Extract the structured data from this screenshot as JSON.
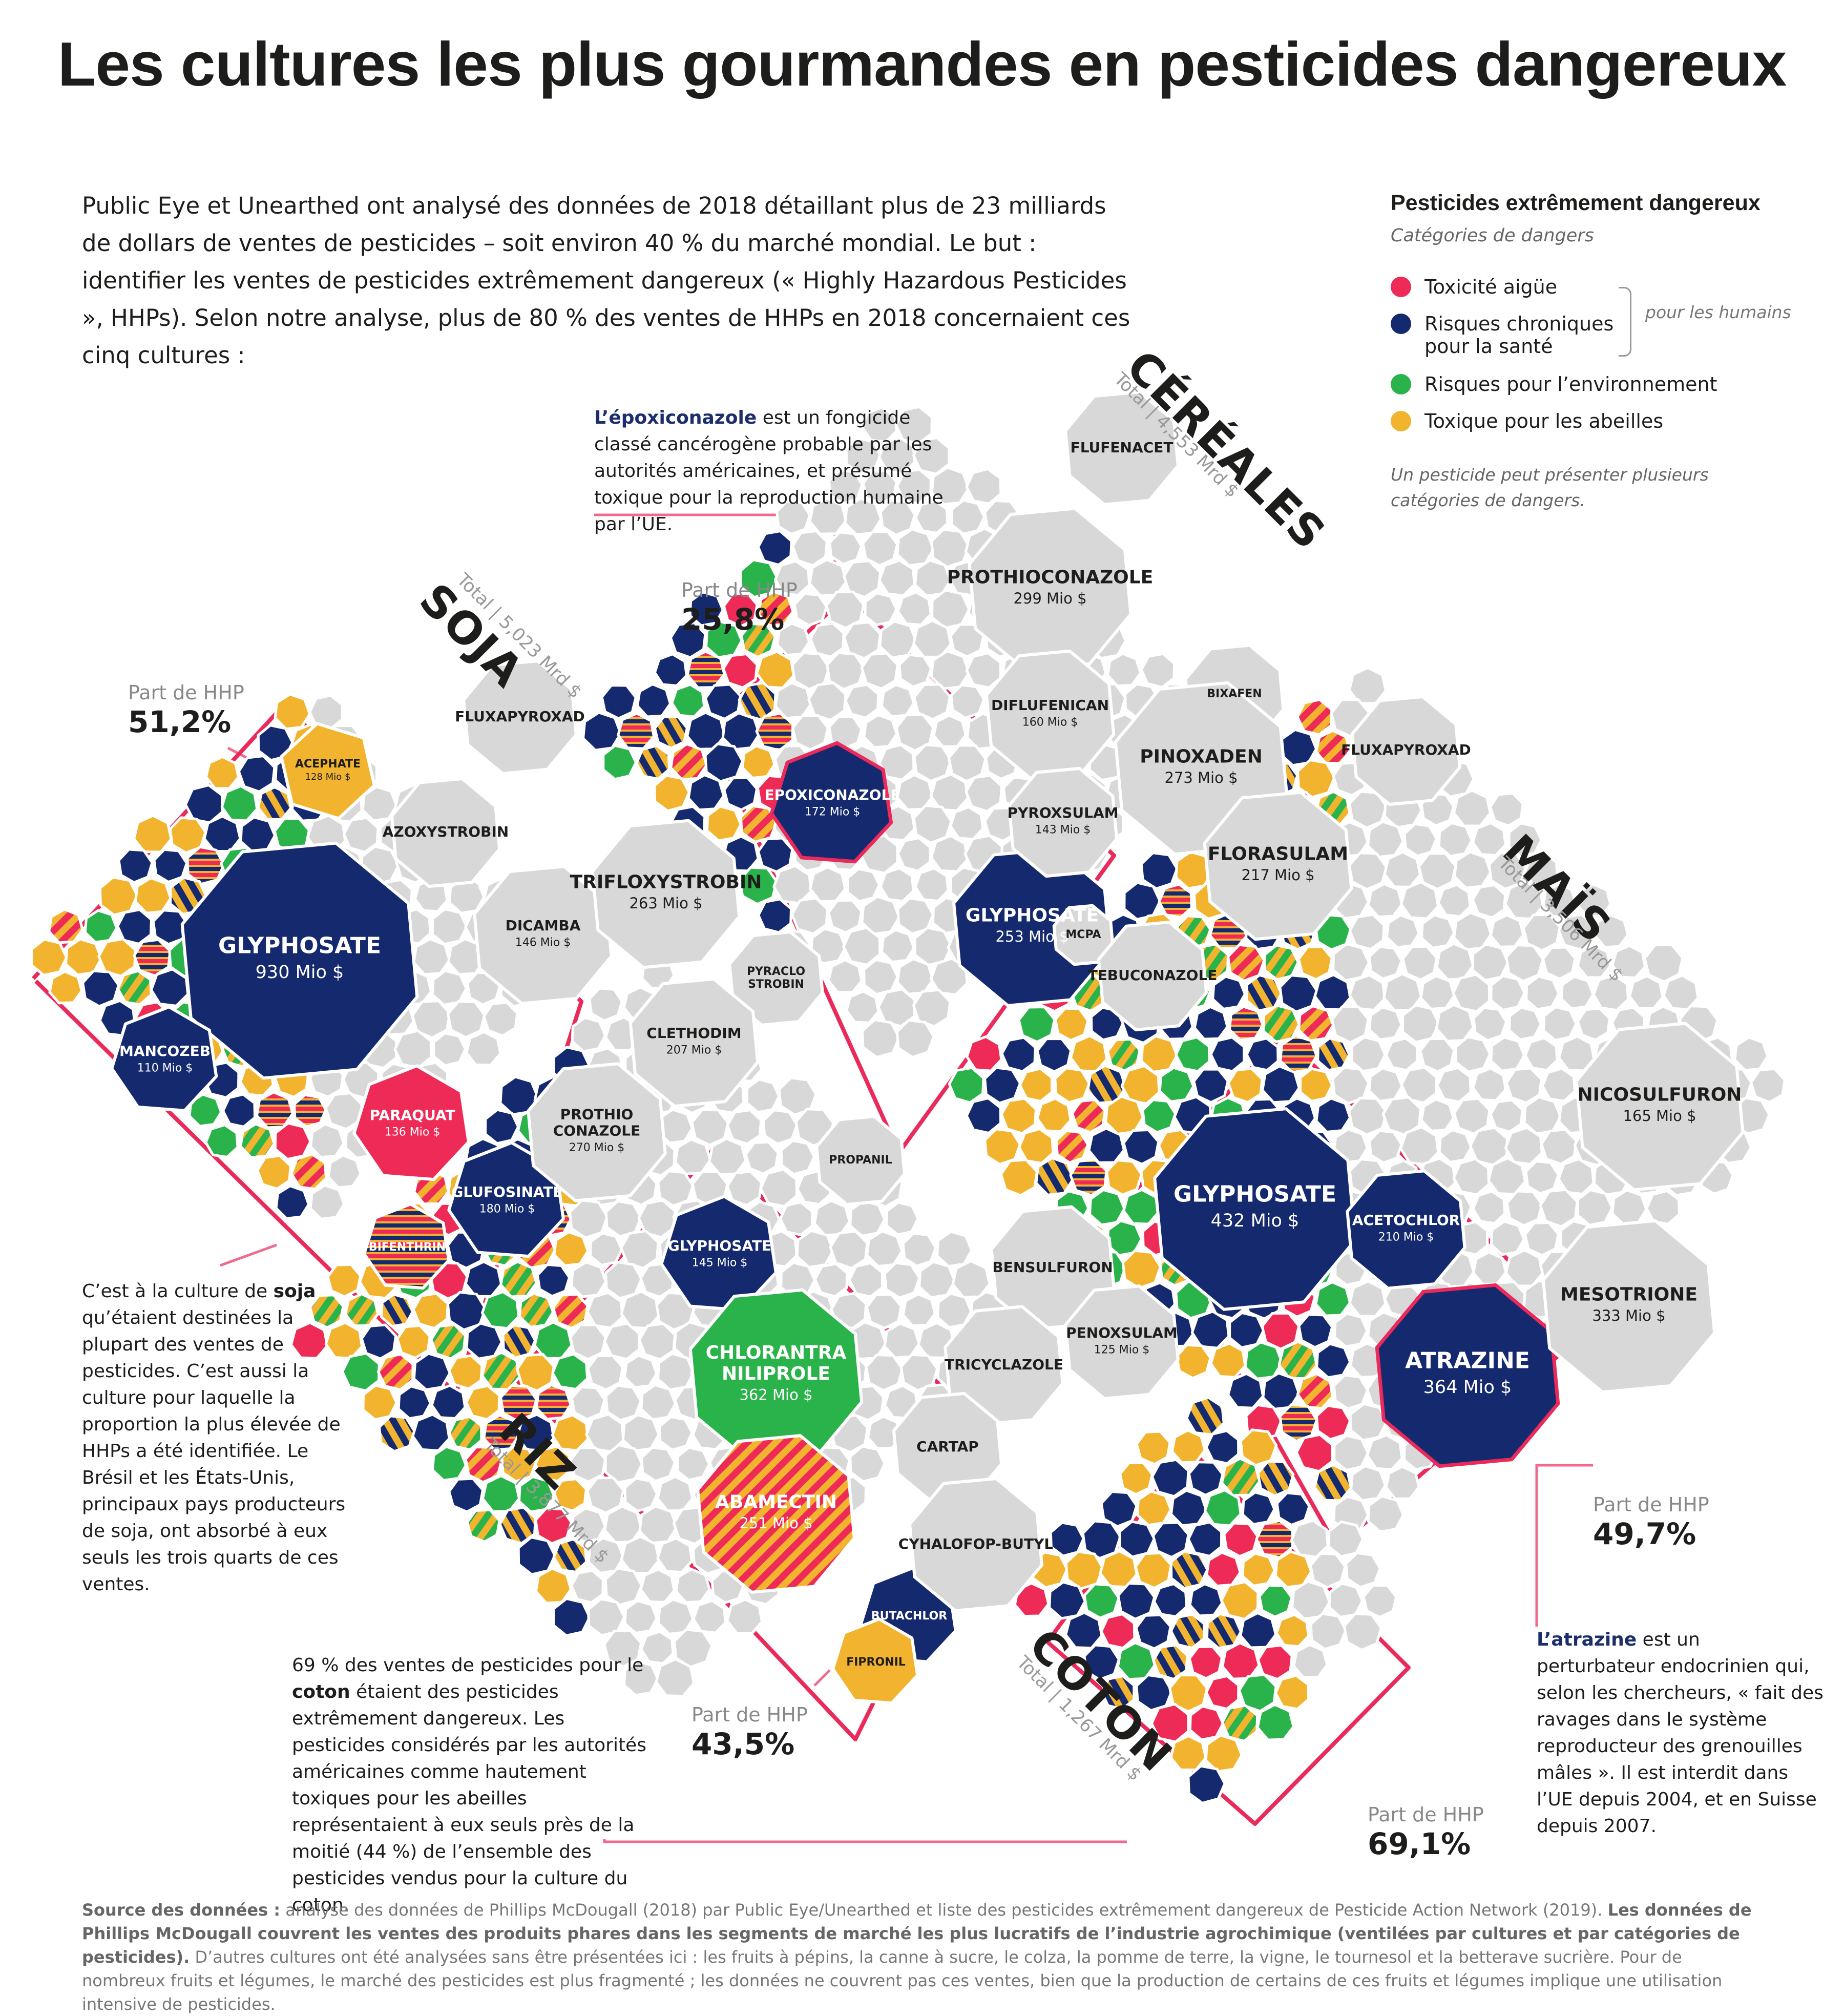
{
  "title": "Les cultures les plus gourmandes en pesticides dangereux",
  "intro": "Public Eye et Unearthed ont analysé des données de 2018 détaillant plus de 23 milliards de dollars de ventes de pesticides – soit environ 40 % du marché mondial. Le but : identifier les ventes de pesticides extrêmement dangereux (« Highly Hazardous Pesticides », HHPs).  Selon notre analyse, plus de 80 % des ventes de HHPs en 2018 concernaient ces cinq cultures :",
  "legend": {
    "title": "Pesticides extrêmement dangereux",
    "subtitle": "Catégories de dangers",
    "humans_label": "pour les humains",
    "items": [
      {
        "label": "Toxicité aigüe",
        "color": "#ee2b57"
      },
      {
        "label": "Risques chroniques",
        "label2": "pour la santé",
        "color": "#15296e"
      },
      {
        "label": "Risques pour l’environnement",
        "color": "#2ab34a"
      },
      {
        "label": "Toxique pour les abeilles",
        "color": "#f2b42e"
      }
    ],
    "note": "Un pesticide peut présenter plusieurs catégories de dangers."
  },
  "share_label": "Part de HHP",
  "colors": {
    "grey": "#d8d8d8",
    "frame": "#ea2a5a",
    "leader": "#f06a8c"
  },
  "chart_data": [
    {
      "type": "treemap",
      "crop": "SOJA",
      "total": "Total | 5,023 Mrd $",
      "hhp_share_pct": 51.2,
      "hhp_share": "51,2%",
      "labels": [
        {
          "name": "GLYPHOSATE",
          "value": "930 Mio $",
          "cat": "chronic"
        },
        {
          "name": "ACEPHATE",
          "value": "128 Mio $",
          "cat": "bees"
        },
        {
          "name": "MANCOZEB",
          "value": "110 Mio $",
          "cat": "chronic"
        },
        {
          "name": "PARAQUAT",
          "value": "136 Mio $",
          "cat": "acute"
        },
        {
          "name": "GLUFOSINATE",
          "value": "180 Mio $",
          "cat": "chronic"
        },
        {
          "name": "BIFENTHRIN",
          "value": "",
          "cat": "chronic"
        },
        {
          "name": "FLUXAPYROXAD",
          "value": "",
          "cat": "grey"
        },
        {
          "name": "AZOXYSTROBIN",
          "value": "",
          "cat": "grey"
        },
        {
          "name": "DICAMBA",
          "value": "146 Mio $",
          "cat": "grey"
        },
        {
          "name": "TRIFLOXYSTROBIN",
          "value": "263 Mio $",
          "cat": "grey"
        },
        {
          "name": "PYRACLO STROBIN",
          "value": "",
          "cat": "grey"
        },
        {
          "name": "CLETHODIM",
          "value": "207 Mio $",
          "cat": "grey"
        },
        {
          "name": "PROTHIO CONAZOLE",
          "value": "270 Mio $",
          "cat": "grey"
        }
      ]
    },
    {
      "type": "treemap",
      "crop": "CÉRÉALES",
      "total": "Total | 4,553 Mrd $",
      "hhp_share_pct": 25.8,
      "hhp_share": "25,8%",
      "labels": [
        {
          "name": "EPOXICONAZOLE",
          "value": "172 Mio $",
          "cat": "chronic"
        },
        {
          "name": "GLYPHOSATE",
          "value": "253 Mio $",
          "cat": "chronic"
        },
        {
          "name": "FLUFENACET",
          "value": "",
          "cat": "grey"
        },
        {
          "name": "PROTHIOCONAZOLE",
          "value": "299 Mio $",
          "cat": "grey"
        },
        {
          "name": "DIFLUFENICAN",
          "value": "160 Mio $",
          "cat": "grey"
        },
        {
          "name": "BIXAFEN",
          "value": "",
          "cat": "grey"
        },
        {
          "name": "PINOXADEN",
          "value": "273 Mio $",
          "cat": "grey"
        },
        {
          "name": "FLUXAPYROXAD",
          "value": "",
          "cat": "grey"
        },
        {
          "name": "PYROXSULAM",
          "value": "143 Mio $",
          "cat": "grey"
        },
        {
          "name": "FLORASULAM",
          "value": "217 Mio $",
          "cat": "grey"
        },
        {
          "name": "MCPA",
          "value": "",
          "cat": "grey"
        },
        {
          "name": "TEBUCONAZOLE",
          "value": "",
          "cat": "grey"
        }
      ]
    },
    {
      "type": "treemap",
      "crop": "MAÏS",
      "total": "Total | 3,506 Mrd $",
      "hhp_share_pct": 49.7,
      "hhp_share": "49,7%",
      "labels": [
        {
          "name": "GLYPHOSATE",
          "value": "432 Mio $",
          "cat": "chronic"
        },
        {
          "name": "ACETOCHLOR",
          "value": "210 Mio $",
          "cat": "chronic"
        },
        {
          "name": "ATRAZINE",
          "value": "364 Mio $",
          "cat": "chronic"
        },
        {
          "name": "NICOSULFURON",
          "value": "165 Mio $",
          "cat": "grey"
        },
        {
          "name": "MESOTRIONE",
          "value": "333 Mio $",
          "cat": "grey"
        }
      ]
    },
    {
      "type": "treemap",
      "crop": "RIZ",
      "total": "Total | 3,877 Mrd $",
      "hhp_share_pct": 43.5,
      "hhp_share": "43,5%",
      "labels": [
        {
          "name": "GLYPHOSATE",
          "value": "145 Mio $",
          "cat": "chronic"
        },
        {
          "name": "CHLORANTRA NILIPROLE",
          "value": "362 Mio $",
          "cat": "environment"
        },
        {
          "name": "ABAMECTIN",
          "value": "251 Mio $",
          "cat": "acute"
        },
        {
          "name": "BUTACHLOR",
          "value": "",
          "cat": "chronic"
        },
        {
          "name": "FIPRONIL",
          "value": "",
          "cat": "bees"
        },
        {
          "name": "PROPANIL",
          "value": "",
          "cat": "grey"
        },
        {
          "name": "BENSULFURON",
          "value": "",
          "cat": "grey"
        },
        {
          "name": "PENOXSULAM",
          "value": "125 Mio $",
          "cat": "grey"
        },
        {
          "name": "TRICYCLAZOLE",
          "value": "",
          "cat": "grey"
        },
        {
          "name": "CARTAP",
          "value": "",
          "cat": "grey"
        },
        {
          "name": "CYHALOFOP-BUTYL",
          "value": "",
          "cat": "grey"
        }
      ]
    },
    {
      "type": "treemap",
      "crop": "COTON",
      "total": "Total | 1,267 Mrd $",
      "hhp_share_pct": 69.1,
      "hhp_share": "69,1%",
      "labels": []
    }
  ],
  "notes": {
    "epox_bold": "L’époxiconazole",
    "epox_rest": " est un fongicide classé cancérogène probable par les autorités américaines, et présumé toxique pour la reproduction humaine par l’UE.",
    "soja_a": "C’est à la culture de ",
    "soja_bold": "soja",
    "soja_b": " qu’étaient destinées la plupart des ventes de pesticides. C’est aussi la culture pour laquelle la proportion la plus élevée de HHPs a été identifiée. Le Brésil et les États-Unis, principaux pays producteurs de soja, ont absorbé à eux seuls les trois quarts de ces ventes.",
    "coton_a": "69 % des ventes de pesticides pour le ",
    "coton_bold": "coton",
    "coton_b": " étaient des pesticides extrêmement dangereux. Les pesticides considérés par les autorités américaines comme hautement toxiques pour les abeilles représentaient à eux seuls près de la moitié (44 %) de l’ensemble des pesticides vendus pour la culture du coton.",
    "atra_bold": "L’atrazine",
    "atra_rest": " est un perturbateur endocrinien qui, selon les chercheurs, « fait des ravages dans le système reproducteur des grenouilles mâles ». Il est interdit dans l’UE depuis 2004, et en Suisse depuis 2007."
  },
  "source": {
    "label": "Source des données :",
    "text1": " analyse des données de Phillips McDougall (2018) par Public Eye/Unearthed et liste des pesticides extrêmement dangereux de Pesticide Action Network (2019). ",
    "bold2": "Les données de Phillips McDougall couvrent les ventes des produits phares dans les segments de marché les plus lucratifs de l’industrie agrochimique (ventilées par cultures et par catégories de pesticides).",
    "text3": " D’autres cultures ont été analysées sans être présentées ici : les fruits à pépins, la canne à sucre, le colza, la pomme de terre, la vigne, le tournesol et la betterave sucrière. Pour de nombreux fruits et légumes, le marché des pesticides est plus fragmenté ; les données ne couvrent pas ces ventes, bien que la production de certains de ces fruits et légumes implique une utilisation intensive de pesticides."
  }
}
